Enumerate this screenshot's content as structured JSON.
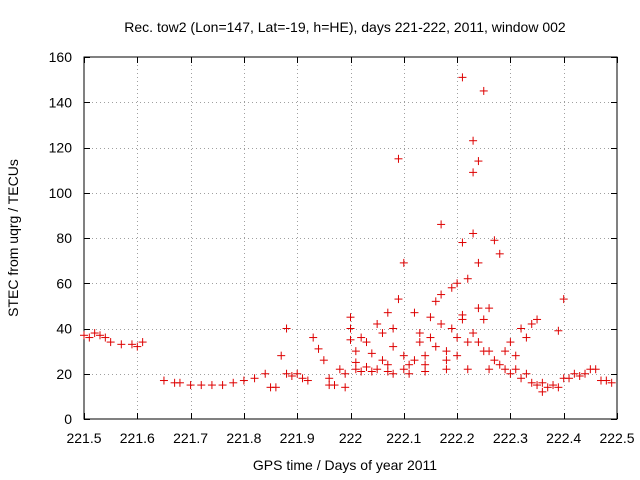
{
  "chart_data": {
    "type": "scatter",
    "title": "Rec. tow2 (Lon=147, Lat=-19, h=HE), days 221-222, 2011, window 002",
    "xlabel": "GPS time / Days of year 2011",
    "ylabel": "STEC from uqrg / TECUs",
    "xlim": [
      221.5,
      222.5
    ],
    "ylim": [
      0,
      160
    ],
    "xticks": [
      221.5,
      221.6,
      221.7,
      221.8,
      221.9,
      222,
      222.1,
      222.2,
      222.3,
      222.4,
      222.5
    ],
    "xtick_labels": [
      "221.5",
      "221.6",
      "221.7",
      "221.8",
      "221.9",
      "222",
      "222.1",
      "222.2",
      "222.3",
      "222.4",
      "222.5"
    ],
    "yticks": [
      0,
      20,
      40,
      60,
      80,
      100,
      120,
      140,
      160
    ],
    "ytick_labels": [
      "0",
      "20",
      "40",
      "60",
      "80",
      "100",
      "120",
      "140",
      "160"
    ],
    "grid": true,
    "marker": "+",
    "color": "#dd0000",
    "points": [
      [
        221.5,
        37
      ],
      [
        221.51,
        36
      ],
      [
        221.52,
        38
      ],
      [
        221.53,
        37
      ],
      [
        221.54,
        36
      ],
      [
        221.55,
        34
      ],
      [
        221.57,
        33
      ],
      [
        221.59,
        33
      ],
      [
        221.6,
        32
      ],
      [
        221.61,
        34
      ],
      [
        221.65,
        17
      ],
      [
        221.67,
        16
      ],
      [
        221.68,
        16
      ],
      [
        221.7,
        15
      ],
      [
        221.72,
        15
      ],
      [
        221.74,
        15
      ],
      [
        221.76,
        15
      ],
      [
        221.78,
        16
      ],
      [
        221.8,
        17
      ],
      [
        221.82,
        18
      ],
      [
        221.84,
        20
      ],
      [
        221.85,
        14
      ],
      [
        221.86,
        14
      ],
      [
        221.87,
        28
      ],
      [
        221.88,
        40
      ],
      [
        221.88,
        20
      ],
      [
        221.89,
        19
      ],
      [
        221.9,
        20
      ],
      [
        221.91,
        18
      ],
      [
        221.92,
        17
      ],
      [
        221.93,
        36
      ],
      [
        221.94,
        31
      ],
      [
        221.95,
        26
      ],
      [
        221.96,
        18
      ],
      [
        221.96,
        15
      ],
      [
        221.97,
        15
      ],
      [
        221.98,
        22
      ],
      [
        221.99,
        20
      ],
      [
        221.99,
        14
      ],
      [
        222.0,
        45
      ],
      [
        222.0,
        40
      ],
      [
        222.0,
        35
      ],
      [
        222.01,
        30
      ],
      [
        222.01,
        25
      ],
      [
        222.01,
        22
      ],
      [
        222.02,
        21
      ],
      [
        222.02,
        36
      ],
      [
        222.03,
        34
      ],
      [
        222.03,
        23
      ],
      [
        222.04,
        21
      ],
      [
        222.04,
        29
      ],
      [
        222.05,
        22
      ],
      [
        222.05,
        42
      ],
      [
        222.06,
        38
      ],
      [
        222.06,
        26
      ],
      [
        222.07,
        24
      ],
      [
        222.07,
        21
      ],
      [
        222.07,
        47
      ],
      [
        222.08,
        40
      ],
      [
        222.08,
        20
      ],
      [
        222.08,
        32
      ],
      [
        222.09,
        53
      ],
      [
        222.09,
        115
      ],
      [
        222.1,
        69
      ],
      [
        222.1,
        28
      ],
      [
        222.1,
        22
      ],
      [
        222.11,
        24
      ],
      [
        222.11,
        20
      ],
      [
        222.12,
        26
      ],
      [
        222.12,
        47
      ],
      [
        222.13,
        38
      ],
      [
        222.13,
        34
      ],
      [
        222.14,
        28
      ],
      [
        222.14,
        24
      ],
      [
        222.14,
        21
      ],
      [
        222.15,
        45
      ],
      [
        222.15,
        36
      ],
      [
        222.16,
        32
      ],
      [
        222.16,
        52
      ],
      [
        222.17,
        55
      ],
      [
        222.17,
        86
      ],
      [
        222.17,
        42
      ],
      [
        222.18,
        30
      ],
      [
        222.18,
        26
      ],
      [
        222.18,
        22
      ],
      [
        222.19,
        58
      ],
      [
        222.19,
        40
      ],
      [
        222.2,
        60
      ],
      [
        222.2,
        36
      ],
      [
        222.2,
        28
      ],
      [
        222.21,
        151
      ],
      [
        222.21,
        78
      ],
      [
        222.21,
        44
      ],
      [
        222.21,
        46
      ],
      [
        222.22,
        62
      ],
      [
        222.22,
        34
      ],
      [
        222.22,
        22
      ],
      [
        222.23,
        123
      ],
      [
        222.23,
        109
      ],
      [
        222.23,
        82
      ],
      [
        222.23,
        38
      ],
      [
        222.24,
        114
      ],
      [
        222.24,
        69
      ],
      [
        222.24,
        49
      ],
      [
        222.24,
        34
      ],
      [
        222.25,
        30
      ],
      [
        222.25,
        145
      ],
      [
        222.25,
        44
      ],
      [
        222.26,
        49
      ],
      [
        222.26,
        30
      ],
      [
        222.26,
        22
      ],
      [
        222.27,
        79
      ],
      [
        222.27,
        26
      ],
      [
        222.28,
        73
      ],
      [
        222.28,
        24
      ],
      [
        222.29,
        30
      ],
      [
        222.29,
        22
      ],
      [
        222.3,
        34
      ],
      [
        222.3,
        20
      ],
      [
        222.31,
        28
      ],
      [
        222.31,
        22
      ],
      [
        222.32,
        40
      ],
      [
        222.32,
        18
      ],
      [
        222.33,
        36
      ],
      [
        222.33,
        20
      ],
      [
        222.34,
        42
      ],
      [
        222.34,
        16
      ],
      [
        222.35,
        44
      ],
      [
        222.35,
        15
      ],
      [
        222.36,
        16
      ],
      [
        222.36,
        12
      ],
      [
        222.37,
        14
      ],
      [
        222.38,
        15
      ],
      [
        222.39,
        39
      ],
      [
        222.39,
        14
      ],
      [
        222.4,
        53
      ],
      [
        222.4,
        18
      ],
      [
        222.41,
        18
      ],
      [
        222.42,
        20
      ],
      [
        222.43,
        19
      ],
      [
        222.44,
        20
      ],
      [
        222.45,
        22
      ],
      [
        222.46,
        22
      ],
      [
        222.47,
        17
      ],
      [
        222.48,
        17
      ],
      [
        222.49,
        16
      ]
    ]
  }
}
